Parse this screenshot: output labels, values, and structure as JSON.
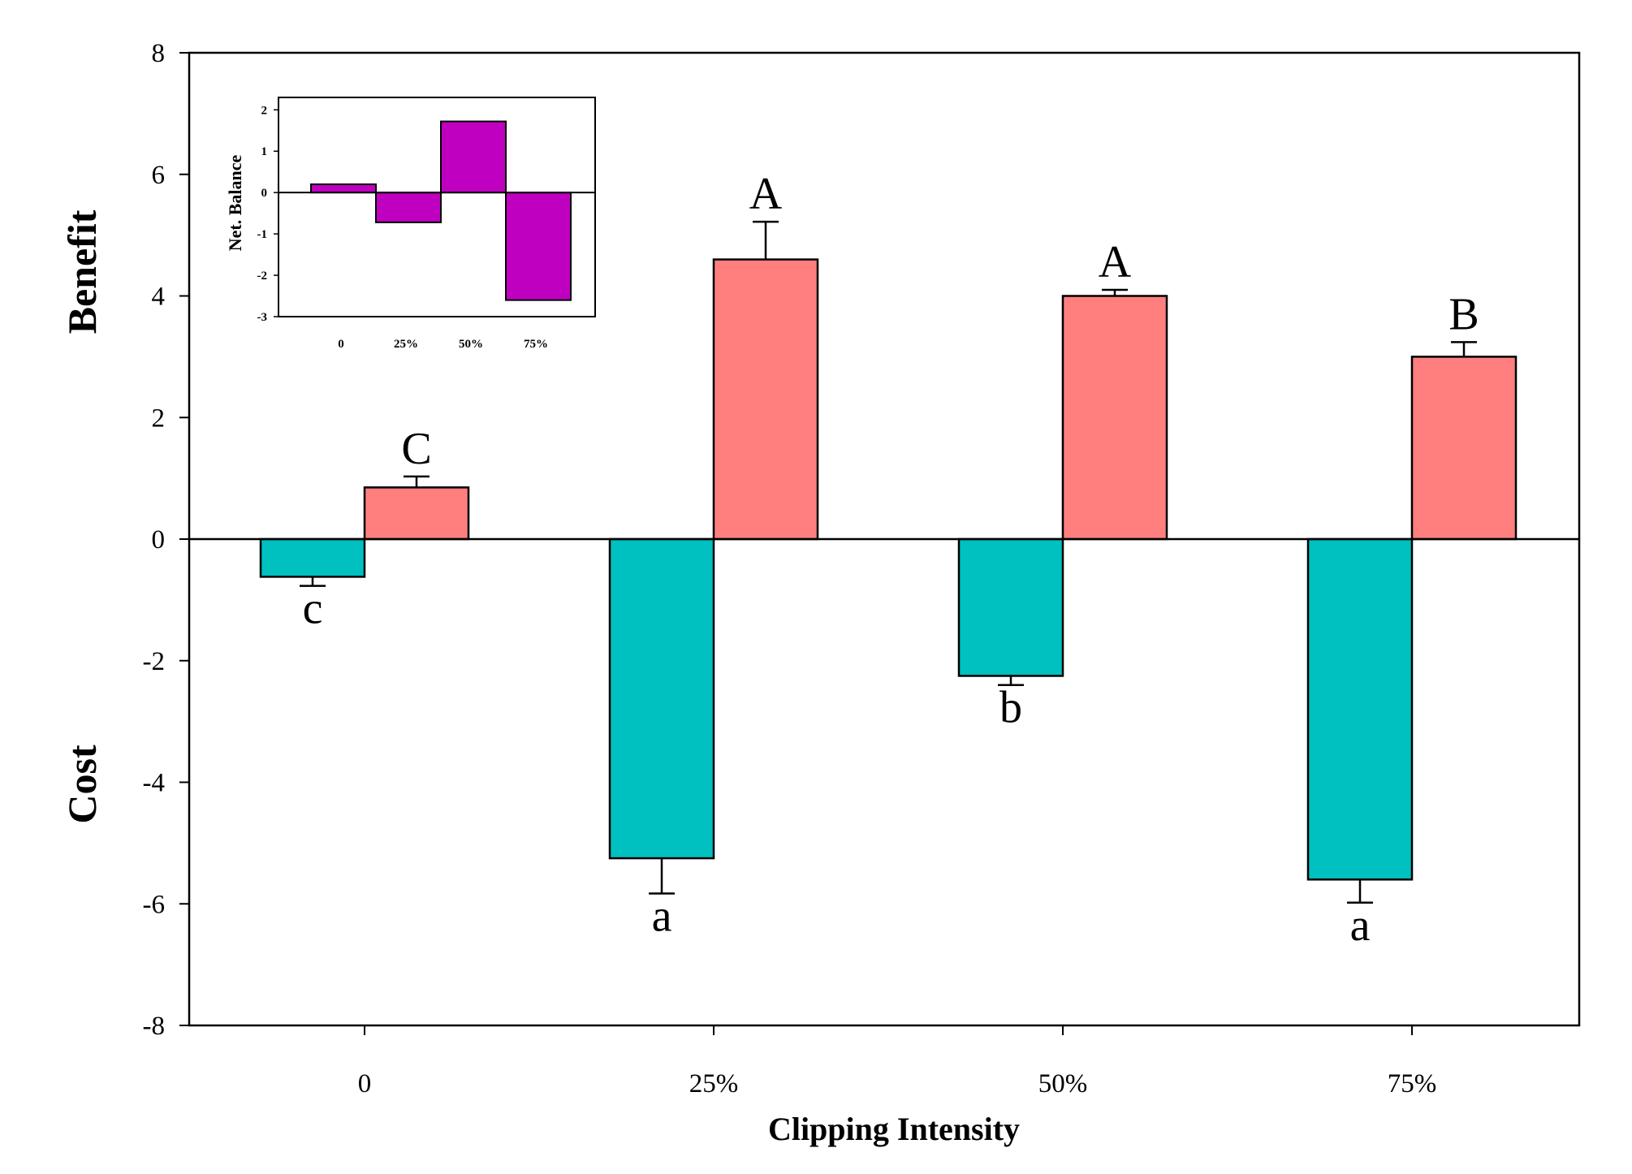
{
  "chart_data": {
    "main": {
      "type": "bar",
      "xlabel": "Clipping Intensity",
      "ylabel_top": "Benefit",
      "ylabel_bottom": "Cost",
      "ylim": [
        -8,
        8
      ],
      "yticks": [
        -8,
        -6,
        -4,
        -2,
        0,
        2,
        4,
        6,
        8
      ],
      "categories": [
        "0",
        "25%",
        "50%",
        "75%"
      ],
      "series": [
        {
          "name": "Cost",
          "color": "#00C0C0",
          "values": [
            -0.62,
            -5.25,
            -2.25,
            -5.6
          ],
          "errors": [
            0.15,
            0.58,
            0.15,
            0.38
          ],
          "letters": [
            "c",
            "a",
            "b",
            "a"
          ]
        },
        {
          "name": "Benefit",
          "color": "#FF7F7F",
          "values": [
            0.85,
            4.6,
            4.0,
            3.0
          ],
          "errors": [
            0.18,
            0.62,
            0.1,
            0.24
          ],
          "letters": [
            "C",
            "A",
            "A",
            "B"
          ]
        }
      ]
    },
    "inset": {
      "type": "bar",
      "ylabel": "Net. Balance",
      "ylim": [
        -3,
        2.3
      ],
      "yticks": [
        -3,
        -2,
        -1,
        0,
        1,
        2
      ],
      "categories": [
        "0",
        "25%",
        "50%",
        "75%"
      ],
      "values": [
        0.2,
        -0.72,
        1.72,
        -2.6
      ],
      "color": "#C000C0"
    }
  }
}
